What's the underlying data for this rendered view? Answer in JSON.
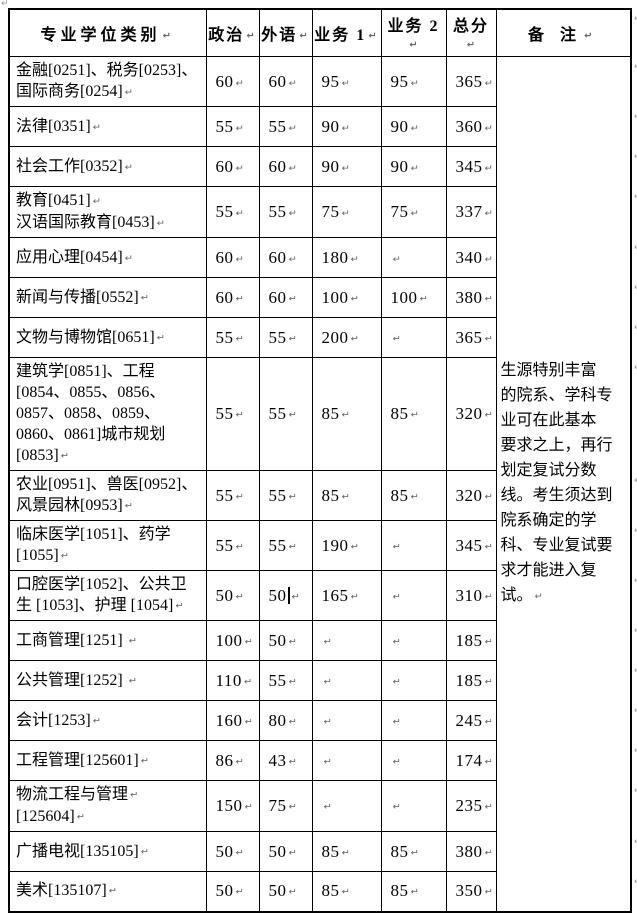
{
  "page": {
    "background": "#ffffff",
    "border_color": "#000000"
  },
  "icons": {
    "paragraph_mark": "↵"
  },
  "table": {
    "header": {
      "category": "专业学位类别",
      "politics": "政治",
      "foreign_language": "外语",
      "subject1": "业务 1",
      "subject2": "业务 2",
      "total": "总分",
      "remark": "备 注"
    },
    "rows": [
      {
        "category": [
          "金融[0251]、税务[0253]、国际商务[0254]"
        ],
        "scores": [
          "60",
          "60",
          "95",
          "95",
          "365"
        ]
      },
      {
        "category": [
          "法律[0351]"
        ],
        "scores": [
          "55",
          "55",
          "90",
          "90",
          "360"
        ]
      },
      {
        "category": [
          "社会工作[0352]"
        ],
        "scores": [
          "60",
          "60",
          "90",
          "90",
          "345"
        ]
      },
      {
        "category": [
          "教育[0451]",
          "汉语国际教育[0453]"
        ],
        "scores": [
          "55",
          "55",
          "75",
          "75",
          "337"
        ]
      },
      {
        "category": [
          "应用心理[0454]"
        ],
        "scores": [
          "60",
          "60",
          "180",
          "",
          "340"
        ]
      },
      {
        "category": [
          "新闻与传播[0552]"
        ],
        "scores": [
          "60",
          "60",
          "100",
          "100",
          "380"
        ]
      },
      {
        "category": [
          "文物与博物馆[0651]"
        ],
        "scores": [
          "55",
          "55",
          "200",
          "",
          "365"
        ]
      },
      {
        "category": [
          "建筑学[0851]、工程[0854、0855、0856、0857、0858、0859、0860、0861]城市规划[0853]"
        ],
        "scores": [
          "55",
          "55",
          "85",
          "85",
          "320"
        ]
      },
      {
        "category": [
          "农业[0951]、兽医[0952]、风景园林[0953]"
        ],
        "scores": [
          "55",
          "55",
          "85",
          "85",
          "320"
        ]
      },
      {
        "category": [
          "临床医学[1051]、药学[1055]"
        ],
        "scores": [
          "55",
          "55",
          "190",
          "",
          "345"
        ]
      },
      {
        "category": [
          "口腔医学[1052]、公共卫生 [1053]、护理 [1054]"
        ],
        "scores": [
          "50",
          "50",
          "165",
          "",
          "310"
        ],
        "caret_after": 1
      },
      {
        "category": [
          "工商管理[1251] "
        ],
        "scores": [
          "100",
          "50",
          "",
          "",
          "185"
        ]
      },
      {
        "category": [
          "公共管理[1252] "
        ],
        "scores": [
          "110",
          "55",
          "",
          "",
          "185"
        ]
      },
      {
        "category": [
          "会计[1253]"
        ],
        "scores": [
          "160",
          "80",
          "",
          "",
          "245"
        ]
      },
      {
        "category": [
          "工程管理[125601]"
        ],
        "scores": [
          "86",
          "43",
          "",
          "",
          "174"
        ]
      },
      {
        "category": [
          "物流工程与管理",
          "[125604]"
        ],
        "scores": [
          "150",
          "75",
          "",
          "",
          "235"
        ]
      },
      {
        "category": [
          "广播电视[135105]"
        ],
        "scores": [
          "50",
          "50",
          "85",
          "85",
          "380"
        ]
      },
      {
        "category": [
          "美术[135107]"
        ],
        "scores": [
          "50",
          "50",
          "85",
          "85",
          "350"
        ]
      }
    ],
    "remark_lines": [
      "生源特别丰富",
      "的院系、学科专",
      "业可在此基本",
      "要求之上，再行",
      "划定复试分数",
      "线。考生须达到",
      "院系确定的学",
      "科、专业复试要",
      "求才能进入复",
      "试。"
    ]
  }
}
